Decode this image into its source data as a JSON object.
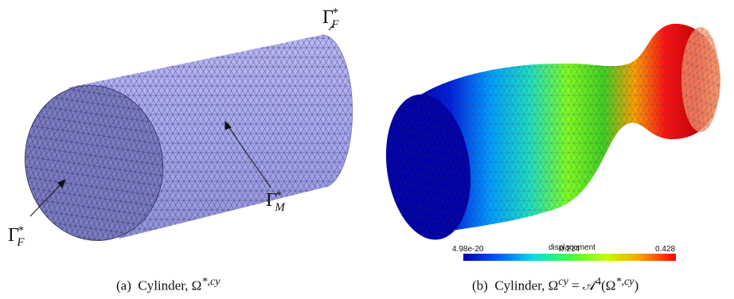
{
  "panels": [
    {
      "caption_prefix": "(a)",
      "caption_text": "Cylinder, Ω",
      "caption_sup": "*,cy",
      "labels": {
        "gamma_f_top": "Γ",
        "gamma_f_top_sup": "*",
        "gamma_f_top_sub": "F",
        "gamma_f_bottom": "Γ",
        "gamma_f_bottom_sup": "*",
        "gamma_f_bottom_sub": "F",
        "gamma_m": "Γ",
        "gamma_m_sup": "*",
        "gamma_m_sub": "M"
      },
      "colors": {
        "mesh_fill": "#a9a9f2",
        "mesh_cap": "#7d7dc4",
        "mesh_line": "#3a3a66"
      }
    },
    {
      "caption_prefix": "(b)",
      "caption_text": "Cylinder, Ω",
      "caption_sup": "cy",
      "caption_rest": " = 𝒜",
      "caption_sup2": "4",
      "caption_tail": "(Ω",
      "caption_sup3": "*,cy",
      "caption_end": ")",
      "colorbar": {
        "title": "displacement",
        "min_label": "4.98e-20",
        "mid_label": "0.214",
        "max_label": "0.428",
        "colormap": [
          "#0000b0",
          "#0060ff",
          "#00e0e0",
          "#40ff40",
          "#c0ff00",
          "#ffa000",
          "#ff0000"
        ]
      }
    }
  ]
}
